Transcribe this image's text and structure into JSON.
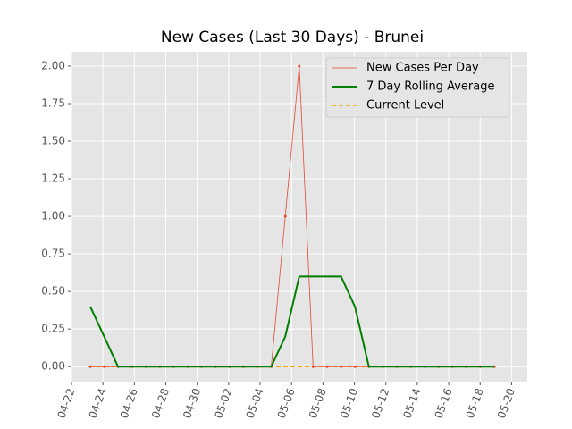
{
  "chart_data": {
    "type": "line",
    "title": "New Cases (Last 30 Days) - Brunei",
    "x": [
      1.19,
      2.08,
      2.96,
      3.85,
      4.74,
      5.62,
      6.51,
      7.4,
      8.28,
      9.17,
      10.05,
      10.94,
      11.83,
      12.71,
      13.6,
      14.49,
      15.37,
      16.26,
      17.15,
      18.03,
      18.92,
      19.81,
      20.69,
      21.58,
      22.47,
      23.35,
      24.24,
      25.12,
      26.01,
      26.9
    ],
    "series": [
      {
        "name": "New Cases Per Day",
        "color": "#e24a33",
        "values": [
          0,
          0,
          0,
          0,
          0,
          0,
          0,
          0,
          0,
          0,
          0,
          0,
          0,
          0,
          1,
          2,
          0,
          0,
          0,
          0,
          0,
          0,
          0,
          0,
          0,
          0,
          0,
          0,
          0,
          0
        ]
      },
      {
        "name": "7 Day Rolling Average",
        "color": "#008000",
        "values": [
          0.4,
          0.2,
          0,
          0,
          0,
          0,
          0,
          0,
          0,
          0,
          0,
          0,
          0,
          0,
          0.2,
          0.6,
          0.6,
          0.6,
          0.6,
          0.4,
          0,
          0,
          0,
          0,
          0,
          0,
          0,
          0,
          0,
          0
        ]
      }
    ],
    "current_level": {
      "name": "Current Level",
      "color": "#ffa500",
      "value": 0
    },
    "xlim": [
      0,
      29
    ],
    "xticks": [
      {
        "value": 0,
        "label": "04-22"
      },
      {
        "value": 2,
        "label": "04-24"
      },
      {
        "value": 4,
        "label": "04-26"
      },
      {
        "value": 6,
        "label": "04-28"
      },
      {
        "value": 8,
        "label": "04-30"
      },
      {
        "value": 10,
        "label": "05-02"
      },
      {
        "value": 12,
        "label": "05-04"
      },
      {
        "value": 14,
        "label": "05-06"
      },
      {
        "value": 16,
        "label": "05-08"
      },
      {
        "value": 18,
        "label": "05-10"
      },
      {
        "value": 20,
        "label": "05-12"
      },
      {
        "value": 22,
        "label": "05-14"
      },
      {
        "value": 24,
        "label": "05-16"
      },
      {
        "value": 26,
        "label": "05-18"
      },
      {
        "value": 28,
        "label": "05-20"
      }
    ],
    "ylim": [
      -0.1,
      2.095
    ],
    "yticks": [
      {
        "value": 0,
        "label": "0.00"
      },
      {
        "value": 0.25,
        "label": "0.25"
      },
      {
        "value": 0.5,
        "label": "0.50"
      },
      {
        "value": 0.75,
        "label": "0.75"
      },
      {
        "value": 1,
        "label": "1.00"
      },
      {
        "value": 1.25,
        "label": "1.25"
      },
      {
        "value": 1.5,
        "label": "1.50"
      },
      {
        "value": 1.75,
        "label": "1.75"
      },
      {
        "value": 2,
        "label": "2.00"
      }
    ],
    "grid": true,
    "legend": "upper right"
  }
}
